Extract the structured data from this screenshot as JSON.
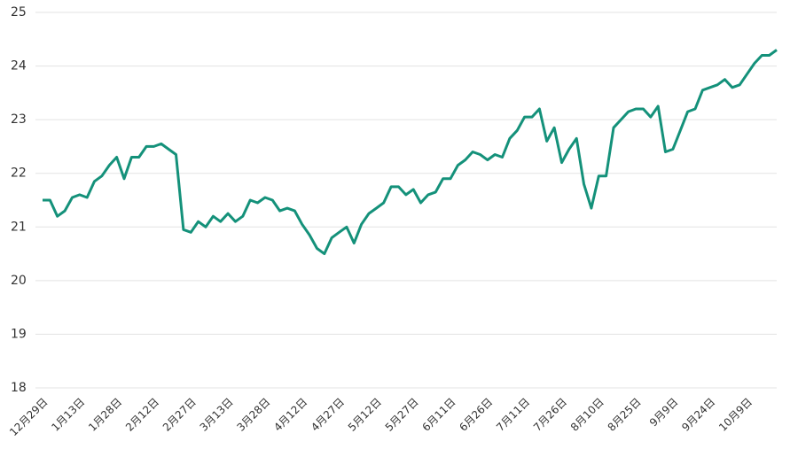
{
  "chart_data": {
    "type": "line",
    "categories": [
      "12月29日",
      null,
      null,
      null,
      null,
      "1月13日",
      null,
      null,
      null,
      null,
      "1月28日",
      null,
      null,
      null,
      null,
      "2月12日",
      null,
      null,
      null,
      null,
      "2月27日",
      null,
      null,
      null,
      null,
      "3月13日",
      null,
      null,
      null,
      null,
      "3月28日",
      null,
      null,
      null,
      null,
      "4月12日",
      null,
      null,
      null,
      null,
      "4月27日",
      null,
      null,
      null,
      null,
      "5月12日",
      null,
      null,
      null,
      null,
      "5月27日",
      null,
      null,
      null,
      null,
      "6月11日",
      null,
      null,
      null,
      null,
      "6月26日",
      null,
      null,
      null,
      null,
      "7月11日",
      null,
      null,
      null,
      null,
      "7月26日",
      null,
      null,
      null,
      null,
      "8月10日",
      null,
      null,
      null,
      null,
      "8月25日",
      null,
      null,
      null,
      null,
      "9月9日",
      null,
      null,
      null,
      null,
      "9月24日",
      null,
      null,
      null,
      null,
      "10月9日",
      null,
      null,
      null,
      null
    ],
    "series": [
      {
        "color": "#14917a",
        "values": [
          21.5,
          21.5,
          21.2,
          21.3,
          21.55,
          21.6,
          21.55,
          21.85,
          21.95,
          22.15,
          22.3,
          21.9,
          22.3,
          22.3,
          22.5,
          22.5,
          22.55,
          22.45,
          22.35,
          20.95,
          20.9,
          21.1,
          21.0,
          21.2,
          21.1,
          21.25,
          21.1,
          21.2,
          21.5,
          21.45,
          21.55,
          21.5,
          21.3,
          21.35,
          21.3,
          21.05,
          20.85,
          20.6,
          20.5,
          20.8,
          20.9,
          21.0,
          20.7,
          21.05,
          21.25,
          21.35,
          21.45,
          21.75,
          21.75,
          21.6,
          21.7,
          21.45,
          21.6,
          21.65,
          21.9,
          21.9,
          22.15,
          22.25,
          22.4,
          22.35,
          22.25,
          22.35,
          22.3,
          22.65,
          22.8,
          23.05,
          23.05,
          23.2,
          22.6,
          22.85,
          22.2,
          22.45,
          22.65,
          21.8,
          21.35,
          21.95,
          21.95,
          22.85,
          23.0,
          23.15,
          23.2,
          23.2,
          23.05,
          23.25,
          22.4,
          22.45,
          22.8,
          23.15,
          23.2,
          23.55,
          23.6,
          23.65,
          23.75,
          23.6,
          23.65,
          23.85,
          24.05,
          24.2,
          24.2,
          24.3
        ]
      }
    ],
    "ylim": [
      18,
      25
    ],
    "yticks": [
      18,
      19,
      20,
      21,
      22,
      23,
      24,
      25
    ],
    "grid": true
  }
}
